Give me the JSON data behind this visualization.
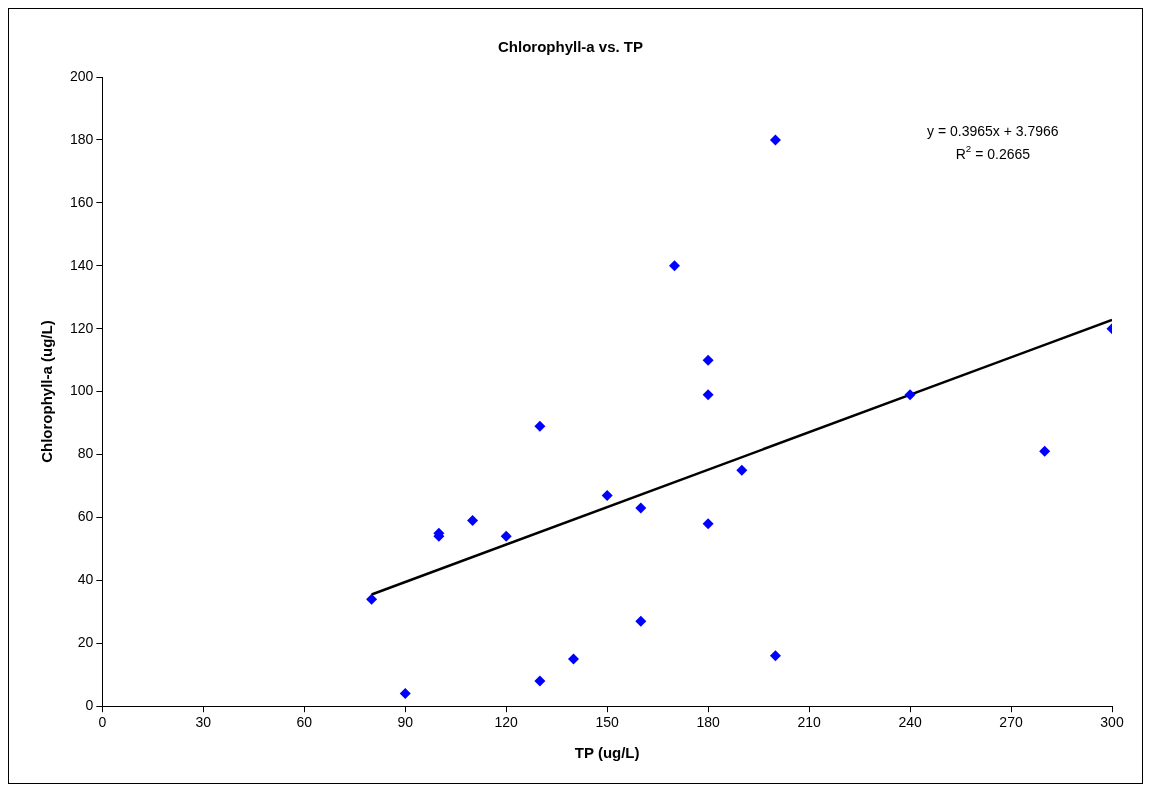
{
  "chart_data": {
    "type": "scatter",
    "title": "Chlorophyll-a vs. TP",
    "xlabel": "TP (ug/L)",
    "ylabel": "Chlorophyll-a (ug/L)",
    "x": [
      80,
      90,
      100,
      100,
      110,
      120,
      130,
      130,
      140,
      150,
      160,
      160,
      170,
      180,
      180,
      180,
      190,
      200,
      200,
      240,
      280,
      300
    ],
    "series": [
      {
        "color": "#0000ff",
        "values": [
          34,
          4,
          55,
          54,
          59,
          54,
          89,
          8,
          15,
          67,
          63,
          27,
          140,
          110,
          99,
          58,
          75,
          180,
          16,
          99,
          81,
          120
        ]
      },
      {
        "type": "line",
        "color": "#000000",
        "x": [
          80,
          300
        ],
        "values": [
          35.5,
          122.8
        ],
        "marker": "none"
      }
    ],
    "xlim": [
      0,
      300
    ],
    "xticks": [
      0,
      30,
      60,
      90,
      120,
      150,
      180,
      210,
      240,
      270,
      300
    ],
    "ylim": [
      0,
      200
    ],
    "yticks": [
      0,
      20,
      40,
      60,
      80,
      100,
      120,
      140,
      160,
      180,
      200
    ],
    "marker": "diamond",
    "grid": false,
    "legend": false,
    "annotations": [
      "y = 0.3965x + 3.7966",
      "R$^{2}$ = 0.2665"
    ]
  }
}
